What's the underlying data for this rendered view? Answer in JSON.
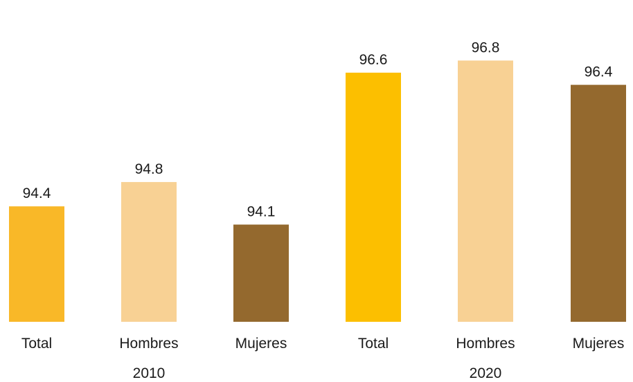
{
  "chart_data": {
    "type": "bar",
    "groups": [
      {
        "label": "2010",
        "bars": [
          {
            "category": "Total",
            "value": 94.4,
            "label": "94.4",
            "color": "#F9B828"
          },
          {
            "category": "Hombres",
            "value": 94.8,
            "label": "94.8",
            "color": "#F8D194"
          },
          {
            "category": "Mujeres",
            "value": 94.1,
            "label": "94.1",
            "color": "#94692E"
          }
        ]
      },
      {
        "label": "2020",
        "bars": [
          {
            "category": "Total",
            "value": 96.6,
            "label": "96.6",
            "color": "#FCBF00"
          },
          {
            "category": "Hombres",
            "value": 96.8,
            "label": "96.8",
            "color": "#F8D194"
          },
          {
            "category": "Mujeres",
            "value": 96.4,
            "label": "96.4",
            "color": "#94692E"
          }
        ]
      }
    ],
    "categories": [
      "Total",
      "Hombres",
      "Mujeres",
      "Total",
      "Hombres",
      "Mujeres"
    ],
    "values": [
      94.4,
      94.8,
      94.1,
      96.6,
      96.8,
      96.4
    ],
    "title": "",
    "xlabel": "",
    "ylabel": "",
    "grid": false,
    "legend": "none"
  }
}
